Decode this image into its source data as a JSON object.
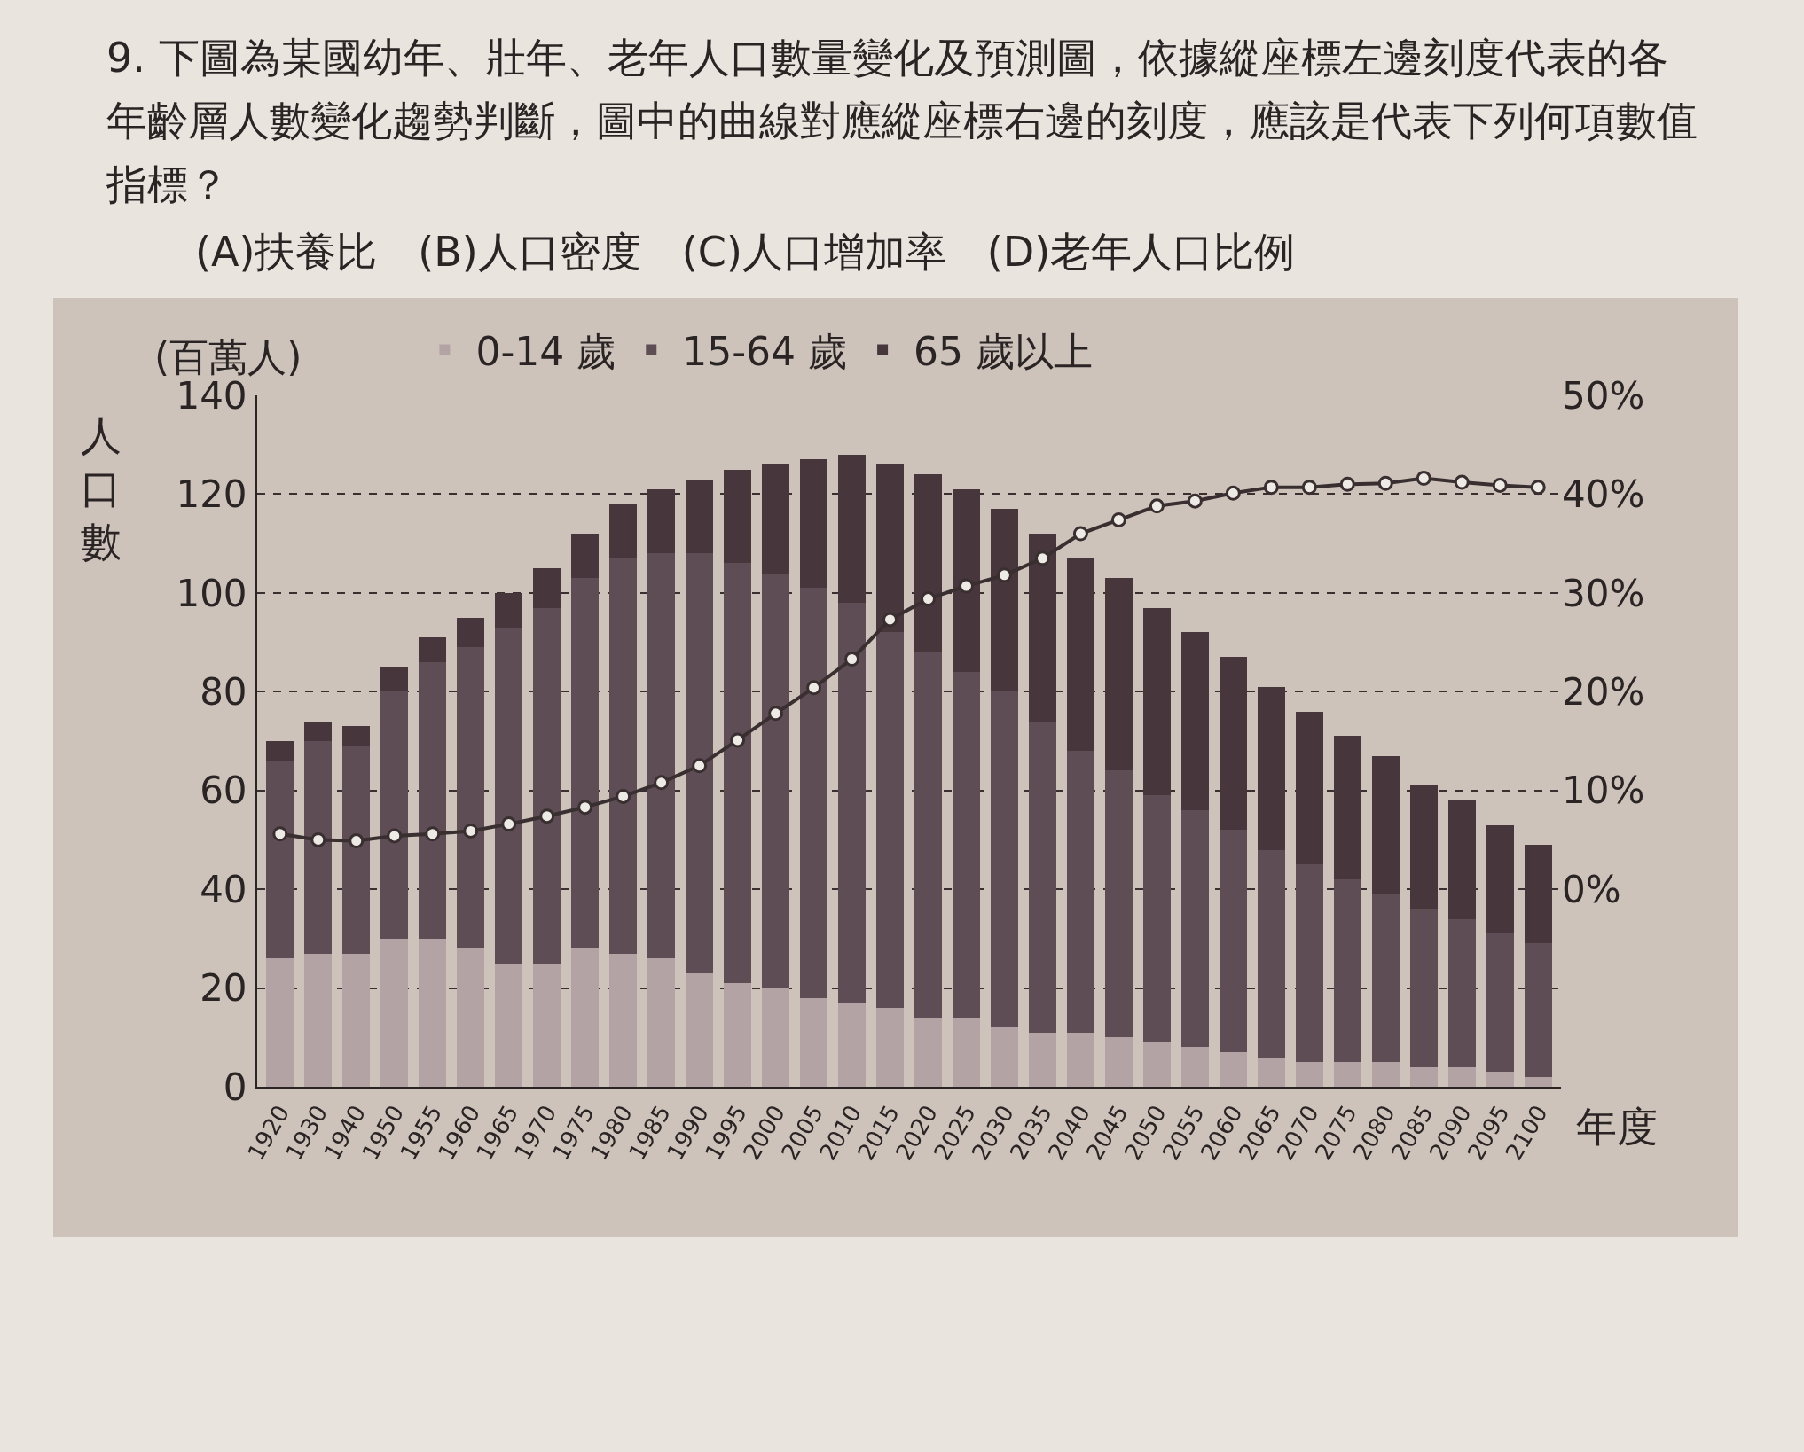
{
  "chart_data": {
    "type": "bar",
    "stacked": true,
    "title": "9. 下圖為某國幼年、壯年、老年人口數量變化及預測圖，依據縱座標左邊刻度代表的各年齡層人數變化趨勢判斷，圖中的曲線對應縱座標右邊的刻度，應該是代表下列何項數值指標？",
    "subtitle": "(A)扶養比　(B)人口密度　(C)人口增加率　(D)老年人口比例",
    "ylabel": "人口數",
    "xlabel": "年度",
    "annotations": [
      "(百萬人)"
    ],
    "categories": [
      "1920",
      "1930",
      "1940",
      "1950",
      "1955",
      "1960",
      "1965",
      "1970",
      "1975",
      "1980",
      "1985",
      "1990",
      "1995",
      "2000",
      "2005",
      "2010",
      "2015",
      "2020",
      "2025",
      "2030",
      "2035",
      "2040",
      "2045",
      "2050",
      "2055",
      "2060",
      "2065",
      "2070",
      "2075",
      "2080",
      "2085",
      "2090",
      "2095",
      "2100"
    ],
    "series": [
      {
        "name": "0-14 歲",
        "color": "#b3a3a5",
        "values": [
          26,
          27,
          27,
          30,
          30,
          28,
          25,
          25,
          28,
          27,
          26,
          23,
          21,
          20,
          18,
          17,
          16,
          14,
          14,
          12,
          11,
          11,
          10,
          9,
          8,
          7,
          6,
          5,
          5,
          5,
          4,
          4,
          3,
          2
        ]
      },
      {
        "name": "15-64 歲",
        "color": "#5e4d55",
        "values": [
          40,
          43,
          42,
          50,
          56,
          61,
          68,
          72,
          75,
          80,
          82,
          85,
          85,
          84,
          83,
          81,
          76,
          74,
          70,
          68,
          63,
          57,
          54,
          50,
          48,
          45,
          42,
          40,
          37,
          34,
          32,
          30,
          28,
          27
        ]
      },
      {
        "name": "65 歲以上",
        "color": "#47373d",
        "values": [
          4,
          4,
          4,
          5,
          5,
          6,
          7,
          8,
          9,
          11,
          13,
          15,
          19,
          22,
          26,
          30,
          34,
          36,
          37,
          37,
          38,
          39,
          39,
          38,
          36,
          35,
          33,
          31,
          29,
          28,
          25,
          24,
          22,
          20
        ]
      },
      {
        "type": "line",
        "axis": "y2",
        "color": "#3a2f30",
        "marker": "circle",
        "values": [
          5.6,
          5.0,
          4.9,
          5.4,
          5.6,
          5.9,
          6.6,
          7.4,
          8.3,
          9.4,
          10.8,
          12.5,
          15.1,
          17.8,
          20.4,
          23.3,
          27.3,
          29.4,
          30.7,
          31.8,
          33.5,
          36,
          37.4,
          38.8,
          39.3,
          40.1,
          40.7,
          40.7,
          41,
          41.1,
          41.6,
          41.2,
          40.9,
          40.7
        ]
      }
    ],
    "ylim": [
      0,
      140
    ],
    "yticks": [
      0,
      20,
      40,
      60,
      80,
      100,
      120,
      140
    ],
    "y2lim": [
      -20,
      50
    ],
    "y2ticks": [
      {
        "value": 0,
        "label": "0%"
      },
      {
        "value": 10,
        "label": "10%"
      },
      {
        "value": 20,
        "label": "20%"
      },
      {
        "value": 30,
        "label": "30%"
      },
      {
        "value": 40,
        "label": "40%"
      },
      {
        "value": 50,
        "label": "50%"
      }
    ],
    "grid": "y",
    "legend": "top"
  }
}
